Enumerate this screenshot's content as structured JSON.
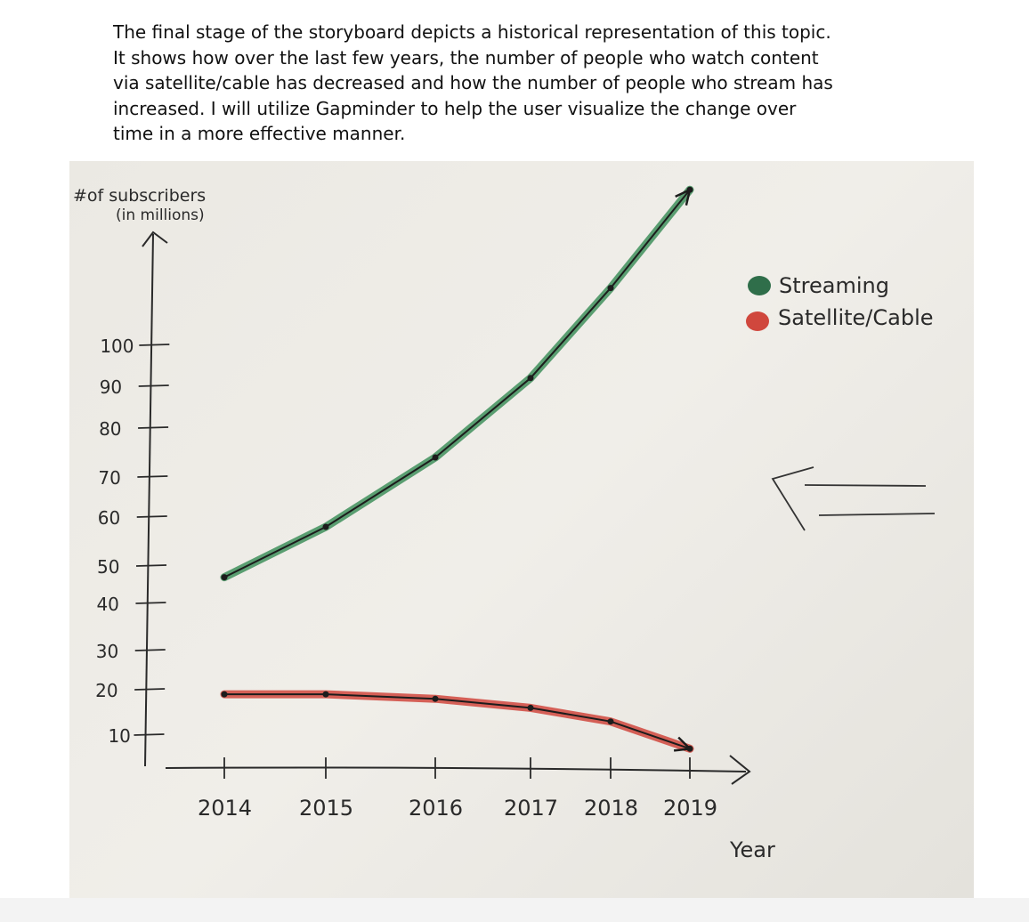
{
  "caption": {
    "lines": [
      "The final stage of the storyboard depicts a historical representation of this topic.",
      "It shows how over the last few years, the number of people who watch content",
      "via satellite/cable has decreased and how the number of people who stream has",
      "increased. I will utilize Gapminder to help the user visualize the change over",
      "time in a more effective manner."
    ]
  },
  "colors": {
    "streaming": "#3f8f5c",
    "satellite_cable": "#d0473d",
    "ink": "#2a2a2a"
  },
  "chart_data": {
    "type": "line",
    "ylabel_line1": "#of subscribers",
    "ylabel_line2": "(in millions)",
    "xlabel": "Year",
    "y_ticks": [
      10,
      20,
      30,
      40,
      50,
      60,
      70,
      80,
      90,
      100
    ],
    "x_ticks": [
      2014,
      2015,
      2016,
      2017,
      2018,
      2019
    ],
    "ylim": [
      0,
      130
    ],
    "xlim": [
      2013.6,
      2019.5
    ],
    "legend_placement": "top-right",
    "series": [
      {
        "name": "Streaming",
        "x": [
          2014,
          2015,
          2016,
          2017,
          2018,
          2019
        ],
        "y": [
          47,
          58,
          74,
          92,
          114,
          138
        ]
      },
      {
        "name": "Satellite/Cable",
        "x": [
          2014,
          2015,
          2016,
          2017,
          2018,
          2019
        ],
        "y": [
          19,
          19,
          18,
          16,
          13,
          7
        ]
      }
    ]
  }
}
